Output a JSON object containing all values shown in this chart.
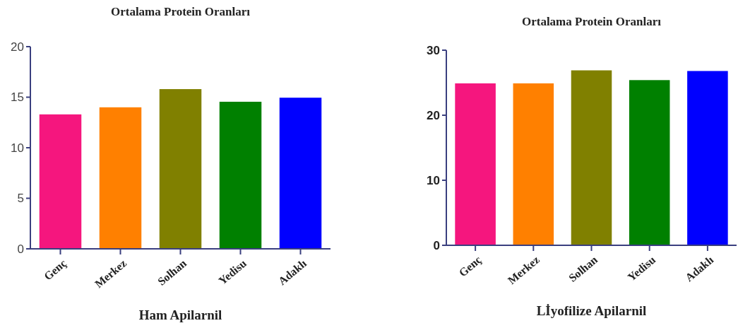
{
  "chart_data": [
    {
      "type": "bar",
      "title": "Ortalama Protein Oranları",
      "xlabel": "Ham Apilarnil",
      "categories": [
        "Genç",
        "Merkez",
        "Solhan",
        "Yedisu",
        "Adaklı"
      ],
      "values": [
        13.3,
        14.0,
        15.8,
        14.55,
        14.95
      ],
      "colors": [
        "#f5167e",
        "#ff8000",
        "#808000",
        "#008000",
        "#0000ff"
      ],
      "ylim": [
        0,
        20
      ],
      "yticks": [
        0,
        5,
        10,
        15,
        20
      ]
    },
    {
      "type": "bar",
      "title": "Ortalama Protein Oranları",
      "xlabel": "Lİyofilize Apilarnil",
      "categories": [
        "Genç",
        "Merkez",
        "Solhan",
        "Yedisu",
        "Adaklı"
      ],
      "values": [
        24.9,
        24.9,
        26.9,
        25.4,
        26.8
      ],
      "colors": [
        "#f5167e",
        "#ff8000",
        "#808000",
        "#008000",
        "#0000ff"
      ],
      "ylim": [
        0,
        30
      ],
      "yticks": [
        0,
        10,
        20,
        30
      ]
    }
  ]
}
